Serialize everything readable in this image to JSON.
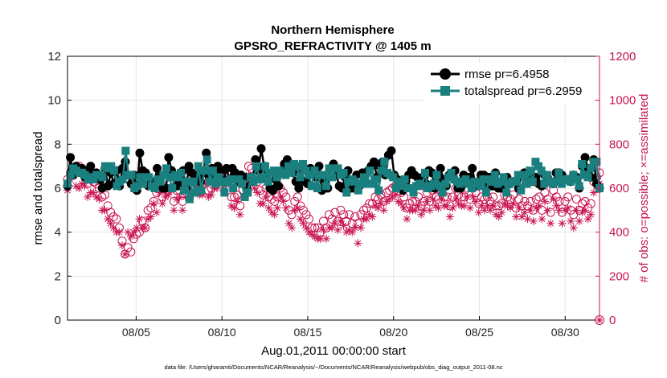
{
  "chart_data": {
    "type": "line",
    "title": "Northern Hemisphere",
    "subtitle": "GPSRO_REFRACTIVITY @ 1405 m",
    "xlabel": "Aug.01,2011 00:00:00 start",
    "ylabel": "rmse and totalspread",
    "ylabel_right": "# of obs: o=possible; ×=assimilated",
    "xlim": [
      1,
      32
    ],
    "ylim": [
      0,
      12
    ],
    "ylim_right": [
      0,
      1200
    ],
    "x_ticks": [
      5,
      10,
      15,
      20,
      25,
      30
    ],
    "x_tick_labels": [
      "08/05",
      "08/10",
      "08/15",
      "08/20",
      "08/25",
      "08/30"
    ],
    "y_ticks": [
      "0",
      "2",
      "4",
      "6",
      "8",
      "10",
      "12"
    ],
    "y_ticks_right": [
      "0",
      "200",
      "400",
      "600",
      "800",
      "1000",
      "1200"
    ],
    "footnote": "data file: /Users/gharamti/Documents/NCAR/Reanalysis/~/Documents/NCAR/Reanalysis/webpub/obs_diag_output_2011-08.nc",
    "legend": [
      "rmse pr=6.4958",
      "totalspread pr=6.2959"
    ],
    "legend_position": "top-right",
    "series": [
      {
        "name": "rmse",
        "color": "#000000",
        "marker": "circle",
        "values": [
          6.1,
          7.4,
          6.6,
          7.0,
          6.8,
          6.9,
          6.5,
          6.8,
          7.0,
          6.6,
          6.7,
          6.4,
          6.0,
          6.9,
          6.1,
          6.7,
          6.2,
          6.8,
          6.1,
          6.9,
          7.2,
          6.6,
          6.2,
          6.6,
          5.9,
          7.6,
          6.8,
          6.7,
          6.1,
          6.3,
          6.2,
          6.9,
          6.5,
          6.0,
          6.0,
          7.4,
          6.8,
          6.5,
          6.1,
          6.4,
          6.8,
          6.0,
          7.0,
          6.7,
          6.4,
          6.6,
          6.3,
          6.7,
          7.6,
          6.5,
          6.9,
          6.5,
          7.0,
          6.8,
          6.3,
          6.9,
          6.4,
          6.9,
          6.7,
          6.3,
          6.6,
          6.5,
          6.0,
          6.5,
          6.3,
          7.3,
          6.8,
          7.8,
          7.0,
          6.4,
          6.0,
          5.9,
          6.4,
          6.1,
          6.8,
          7.1,
          7.3,
          6.8,
          6.7,
          6.3,
          6.0,
          6.8,
          6.3,
          6.2,
          6.9,
          6.7,
          6.5,
          7.0,
          5.9,
          6.4,
          6.0,
          6.9,
          7.1,
          6.6,
          6.1,
          6.0,
          6.5,
          6.8,
          6.0,
          6.0,
          6.6,
          6.1,
          6.7,
          6.3,
          6.8,
          7.0,
          7.2,
          6.5,
          7.0,
          7.2,
          6.6,
          7.5,
          7.7,
          6.6,
          6.4,
          6.1,
          5.9,
          6.3,
          6.6,
          6.8,
          6.6,
          6.5,
          6.2,
          6.5,
          6.2,
          6.8,
          6.7,
          6.0,
          6.5,
          6.9,
          6.4,
          6.1,
          6.6,
          6.6,
          6.8,
          6.0,
          6.0,
          6.6,
          6.4,
          6.5,
          6.9,
          6.2,
          6.1,
          6.6,
          6.6,
          6.0,
          6.5,
          6.1,
          6.7,
          6.0,
          6.0,
          6.0,
          6.5,
          6.2,
          6.3,
          6.3,
          6.0,
          6.6,
          6.7,
          6.5,
          6.7,
          6.3,
          6.5,
          6.2,
          6.1,
          6.6,
          6.5,
          6.3,
          6.2,
          6.7,
          6.7,
          6.6,
          6.4,
          6.4,
          6.3,
          6.6,
          6.5,
          6.0,
          7.0,
          7.4,
          6.9,
          6.5,
          7.3,
          6.2,
          6.0
        ]
      },
      {
        "name": "totalspread",
        "color": "#1a7f7f",
        "marker": "square",
        "values": [
          6.2,
          6.6,
          6.9,
          6.8,
          6.7,
          6.7,
          6.6,
          6.4,
          6.5,
          6.4,
          6.6,
          6.6,
          6.5,
          7.0,
          6.9,
          7.0,
          6.8,
          6.1,
          6.3,
          6.4,
          7.7,
          6.6,
          6.6,
          6.0,
          6.1,
          6.5,
          6.2,
          6.5,
          6.5,
          6.1,
          6.0,
          6.4,
          6.3,
          6.6,
          6.9,
          6.5,
          6.0,
          6.6,
          6.5,
          6.7,
          5.9,
          6.3,
          5.5,
          6.3,
          5.8,
          7.0,
          5.9,
          6.8,
          7.3,
          6.3,
          6.8,
          6.2,
          6.5,
          6.3,
          5.8,
          6.3,
          6.4,
          6.0,
          6.4,
          6.4,
          6.2,
          5.6,
          5.8,
          6.5,
          6.3,
          7.0,
          6.4,
          6.5,
          7.0,
          6.3,
          6.7,
          6.8,
          6.5,
          6.8,
          6.7,
          6.6,
          7.0,
          6.7,
          7.1,
          7.0,
          6.5,
          7.1,
          6.8,
          6.6,
          6.1,
          6.8,
          6.0,
          6.6,
          6.6,
          6.1,
          6.9,
          6.5,
          6.9,
          6.9,
          6.6,
          6.7,
          5.8,
          6.3,
          6.4,
          6.3,
          5.9,
          6.2,
          6.5,
          6.2,
          6.8,
          6.2,
          6.4,
          5.9,
          6.8,
          7.2,
          6.7,
          6.6,
          6.5,
          6.0,
          6.3,
          6.1,
          6.4,
          6.0,
          6.0,
          5.8,
          6.1,
          6.2,
          6.1,
          6.7,
          6.0,
          6.1,
          6.2,
          6.6,
          6.1,
          5.8,
          6.2,
          6.5,
          6.7,
          6.4,
          6.3,
          6.2,
          6.3,
          6.4,
          6.2,
          6.0,
          6.3,
          6.2,
          6.1,
          6.4,
          5.8,
          6.4,
          6.3,
          6.6,
          6.2,
          6.3,
          6.5,
          5.8,
          6.2,
          6.3,
          6.3,
          6.6,
          5.9,
          6.6,
          6.2,
          6.8,
          6.3,
          7.2,
          7.0,
          6.8,
          6.2,
          6.6,
          6.3,
          6.2,
          6.3,
          6.7,
          6.2,
          6.4,
          6.4,
          6.3,
          6.6,
          6.4,
          6.1,
          7.1,
          6.6,
          6.5,
          6.9,
          7.2,
          7.2,
          6.0
        ]
      },
      {
        "name": "possible",
        "color": "#c8144f",
        "marker": "circle-open",
        "axis": "right",
        "values": [
          640,
          670,
          660,
          680,
          700,
          690,
          680,
          620,
          640,
          630,
          620,
          600,
          560,
          570,
          520,
          490,
          470,
          460,
          420,
          360,
          300,
          330,
          310,
          370,
          390,
          400,
          450,
          420,
          500,
          510,
          540,
          580,
          620,
          560,
          600,
          590,
          620,
          540,
          590,
          590,
          540,
          610,
          620,
          600,
          660,
          650,
          640,
          620,
          640,
          590,
          600,
          640,
          630,
          660,
          640,
          650,
          640,
          560,
          560,
          570,
          520,
          590,
          650,
          700,
          690,
          650,
          630,
          590,
          570,
          600,
          560,
          550,
          540,
          560,
          600,
          580,
          560,
          500,
          480,
          540,
          560,
          520,
          500,
          480,
          460,
          420,
          420,
          420,
          400,
          450,
          420,
          480,
          460,
          490,
          450,
          500,
          480,
          450,
          480,
          440,
          470,
          440,
          480,
          500,
          510,
          530,
          530,
          560,
          550,
          570,
          540,
          580,
          590,
          600,
          610,
          590,
          580,
          560,
          510,
          530,
          540,
          540,
          560,
          520,
          540,
          580,
          540,
          590,
          560,
          550,
          590,
          560,
          560,
          520,
          560,
          600,
          570,
          560,
          560,
          600,
          550,
          600,
          580,
          530,
          560,
          550,
          560,
          540,
          560,
          520,
          520,
          530,
          570,
          560,
          550,
          570,
          510,
          550,
          520,
          540,
          520,
          540,
          500,
          550,
          560,
          500,
          580,
          550,
          490,
          590,
          560,
          540,
          490,
          540,
          560,
          500,
          480,
          550,
          500,
          530,
          540,
          510,
          530,
          630,
          650,
          670
        ]
      },
      {
        "name": "assimilated",
        "color": "#c8144f",
        "marker": "asterisk",
        "axis": "right",
        "values": [
          590,
          640,
          660,
          610,
          600,
          620,
          610,
          560,
          580,
          580,
          560,
          550,
          500,
          500,
          460,
          440,
          420,
          400,
          400,
          340,
          300,
          400,
          380,
          400,
          420,
          460,
          420,
          420,
          460,
          470,
          530,
          490,
          580,
          530,
          560,
          570,
          590,
          500,
          550,
          560,
          500,
          560,
          590,
          570,
          620,
          610,
          570,
          570,
          620,
          560,
          570,
          600,
          600,
          630,
          600,
          620,
          620,
          520,
          510,
          540,
          480,
          560,
          620,
          660,
          650,
          600,
          580,
          530,
          530,
          560,
          510,
          490,
          480,
          510,
          560,
          540,
          510,
          440,
          420,
          500,
          510,
          460,
          440,
          420,
          400,
          390,
          380,
          370,
          370,
          410,
          370,
          420,
          420,
          440,
          410,
          450,
          430,
          400,
          410,
          400,
          420,
          350,
          420,
          460,
          460,
          480,
          470,
          520,
          510,
          530,
          500,
          540,
          550,
          560,
          570,
          540,
          530,
          510,
          460,
          500,
          500,
          500,
          520,
          480,
          500,
          540,
          500,
          550,
          520,
          510,
          550,
          520,
          520,
          470,
          510,
          550,
          530,
          520,
          520,
          560,
          510,
          560,
          540,
          490,
          520,
          500,
          520,
          500,
          520,
          480,
          470,
          490,
          530,
          520,
          510,
          530,
          470,
          510,
          470,
          490,
          460,
          500,
          450,
          510,
          520,
          460,
          540,
          500,
          440,
          550,
          520,
          500,
          440,
          500,
          510,
          450,
          420,
          500,
          450,
          490,
          500,
          460,
          480,
          580,
          610,
          620
        ]
      }
    ]
  }
}
